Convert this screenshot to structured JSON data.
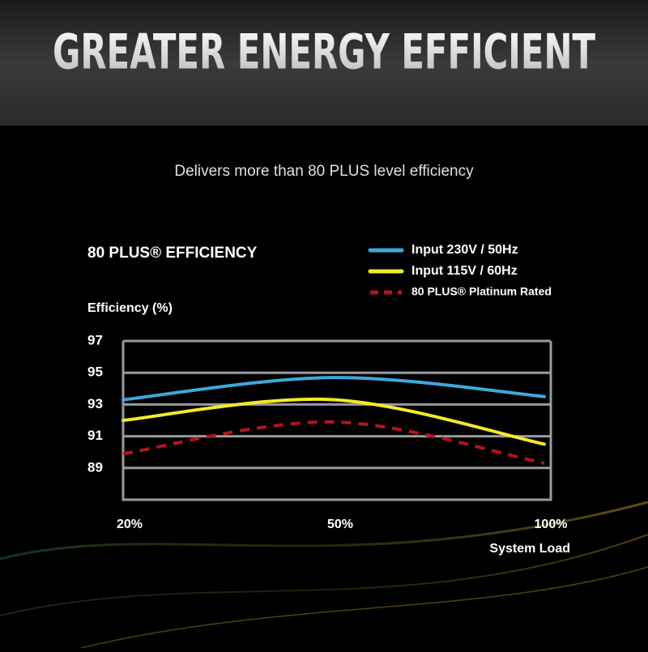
{
  "header": {
    "title": "GREATER ENERGY EFFICIENT",
    "subtitle": "Delivers more than 80 PLUS level efficiency"
  },
  "chart_data": {
    "type": "line",
    "title": "80 PLUS® EFFICIENCY",
    "y_label": "Efficiency (%)",
    "x_label": "System Load",
    "categories": [
      "20%",
      "50%",
      "100%"
    ],
    "series": [
      {
        "name": "Input 230V / 50Hz",
        "color": "#3ea8dc",
        "values": [
          93.3,
          94.7,
          93.5
        ]
      },
      {
        "name": "Input 115V / 60Hz",
        "color": "#f2ea2a",
        "values": [
          92.0,
          93.3,
          90.5
        ]
      },
      {
        "name": "80 PLUS® Platinum Rated",
        "color": "#b3141c",
        "dashed": true,
        "values": [
          89.9,
          91.9,
          89.3
        ]
      }
    ],
    "ylim": [
      87,
      97
    ],
    "yticks": [
      89,
      91,
      93,
      95,
      97
    ],
    "grid": true
  }
}
